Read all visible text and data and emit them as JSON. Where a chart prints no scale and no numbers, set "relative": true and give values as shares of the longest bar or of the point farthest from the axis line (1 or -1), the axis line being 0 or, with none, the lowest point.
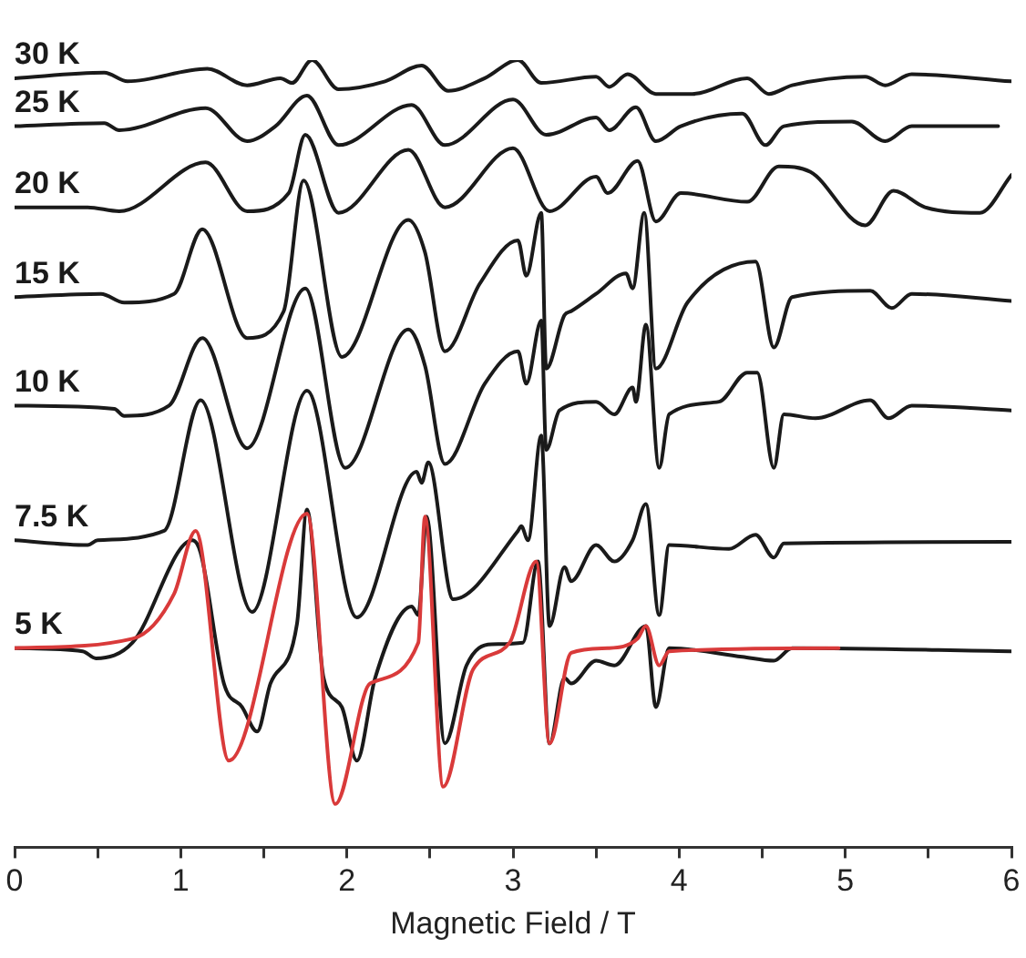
{
  "chart_data": {
    "type": "line",
    "relative": true,
    "xlabel": "Magnetic Field / T",
    "xlim": [
      0,
      6
    ],
    "xticks": [
      0,
      {
        "value": 0.5,
        "label": null
      },
      1,
      {
        "value": 1.5,
        "label": null
      },
      2,
      {
        "value": 2.5,
        "label": null
      },
      3,
      {
        "value": 3.5,
        "label": null
      },
      4,
      {
        "value": 4.5,
        "label": null
      },
      5,
      {
        "value": 5.5,
        "label": null
      },
      6
    ],
    "tick_labels": "x",
    "legend": false,
    "marker": "none",
    "line_style": "solid",
    "series": [
      {
        "name": "30 K",
        "color": "#1a1a1a",
        "x": [
          0,
          0.54,
          0.68,
          1.16,
          1.4,
          1.6,
          1.67,
          1.79,
          1.95,
          2.23,
          2.45,
          2.61,
          2.83,
          3.03,
          3.17,
          3.5,
          3.58,
          3.69,
          3.86,
          4.08,
          4.41,
          4.54,
          4.68,
          5.12,
          5.24,
          5.4,
          6.0
        ],
        "values": [
          0.977,
          0.984,
          0.973,
          0.989,
          0.968,
          0.977,
          0.971,
          1.0,
          0.963,
          0.973,
          0.993,
          0.961,
          0.977,
          1.0,
          0.971,
          0.979,
          0.966,
          0.982,
          0.957,
          0.957,
          0.977,
          0.957,
          0.968,
          0.979,
          0.968,
          0.982,
          0.973
        ]
      },
      {
        "name": "25 K",
        "color": "#1a1a1a",
        "x": [
          0,
          0.54,
          0.63,
          1.15,
          1.4,
          1.57,
          1.76,
          1.95,
          2.39,
          2.59,
          3.0,
          3.2,
          3.5,
          3.58,
          3.74,
          3.86,
          4.01,
          4.38,
          4.52,
          4.63,
          5.04,
          5.24,
          5.4,
          5.92
        ],
        "values": [
          0.916,
          0.92,
          0.911,
          0.939,
          0.897,
          0.916,
          0.955,
          0.892,
          0.943,
          0.892,
          0.95,
          0.905,
          0.927,
          0.911,
          0.94,
          0.897,
          0.916,
          0.932,
          0.892,
          0.916,
          0.922,
          0.897,
          0.916,
          0.916
        ]
      },
      {
        "name": "20 K",
        "color": "#1a1a1a",
        "x": [
          0,
          0.44,
          0.63,
          1.15,
          1.4,
          1.65,
          1.75,
          1.95,
          2.37,
          2.59,
          3.0,
          3.22,
          3.5,
          3.57,
          3.75,
          3.86,
          4.01,
          4.41,
          4.6,
          4.79,
          5.12,
          5.29,
          5.48,
          5.81,
          6.0
        ],
        "values": [
          0.813,
          0.813,
          0.808,
          0.87,
          0.808,
          0.831,
          0.905,
          0.806,
          0.886,
          0.813,
          0.888,
          0.808,
          0.852,
          0.831,
          0.872,
          0.795,
          0.831,
          0.82,
          0.865,
          0.858,
          0.79,
          0.834,
          0.813,
          0.806,
          0.854
        ]
      },
      {
        "name": "15 K",
        "color": "#1a1a1a",
        "x": [
          0,
          0.52,
          0.66,
          0.96,
          1.13,
          1.4,
          1.62,
          1.74,
          1.97,
          2.37,
          2.47,
          2.59,
          2.8,
          3.03,
          3.08,
          3.17,
          3.2,
          3.31,
          3.35,
          3.5,
          3.68,
          3.72,
          3.79,
          3.86,
          4.05,
          4.46,
          4.57,
          4.68,
          5.15,
          5.28,
          5.4,
          6.0
        ],
        "values": [
          0.699,
          0.703,
          0.692,
          0.703,
          0.785,
          0.647,
          0.681,
          0.847,
          0.623,
          0.797,
          0.756,
          0.63,
          0.716,
          0.771,
          0.726,
          0.806,
          0.608,
          0.676,
          0.681,
          0.703,
          0.729,
          0.71,
          0.806,
          0.608,
          0.692,
          0.744,
          0.635,
          0.699,
          0.707,
          0.685,
          0.703,
          0.694
        ]
      },
      {
        "name": "10 K",
        "color": "#1a1a1a",
        "x": [
          0,
          0.6,
          0.66,
          0.93,
          1.13,
          1.4,
          1.75,
          1.99,
          2.37,
          2.47,
          2.59,
          2.83,
          3.03,
          3.08,
          3.17,
          3.2,
          3.28,
          3.5,
          3.61,
          3.72,
          3.74,
          3.8,
          3.88,
          3.94,
          4.24,
          4.41,
          4.47,
          4.57,
          4.63,
          4.82,
          5.15,
          5.26,
          5.4,
          6.0
        ],
        "values": [
          0.561,
          0.557,
          0.548,
          0.561,
          0.647,
          0.507,
          0.71,
          0.482,
          0.658,
          0.612,
          0.487,
          0.589,
          0.63,
          0.589,
          0.669,
          0.505,
          0.555,
          0.566,
          0.55,
          0.584,
          0.566,
          0.664,
          0.482,
          0.55,
          0.566,
          0.603,
          0.603,
          0.482,
          0.55,
          0.545,
          0.568,
          0.545,
          0.561,
          0.555
        ]
      },
      {
        "name": "7.5 K",
        "color": "#1a1a1a",
        "x": [
          0,
          0.44,
          0.5,
          0.9,
          1.12,
          1.43,
          1.76,
          2.06,
          2.42,
          2.45,
          2.49,
          2.64,
          3.03,
          3.05,
          3.09,
          3.17,
          3.22,
          3.31,
          3.35,
          3.5,
          3.61,
          3.72,
          3.8,
          3.88,
          3.94,
          4.3,
          4.46,
          4.57,
          4.63,
          6.0
        ],
        "values": [
          0.39,
          0.384,
          0.39,
          0.402,
          0.568,
          0.299,
          0.58,
          0.292,
          0.477,
          0.463,
          0.489,
          0.315,
          0.402,
          0.408,
          0.39,
          0.523,
          0.281,
          0.356,
          0.338,
          0.384,
          0.363,
          0.39,
          0.436,
          0.295,
          0.384,
          0.379,
          0.397,
          0.368,
          0.386,
          0.388
        ]
      },
      {
        "name": "5 K",
        "color": "#1a1a1a",
        "x": [
          0,
          0.41,
          0.49,
          0.71,
          1.07,
          1.12,
          1.26,
          1.37,
          1.46,
          1.54,
          1.7,
          1.76,
          1.86,
          1.97,
          2.06,
          2.17,
          2.39,
          2.43,
          2.48,
          2.59,
          2.72,
          2.87,
          3.06,
          3.15,
          3.22,
          3.31,
          3.35,
          3.5,
          3.61,
          3.8,
          3.86,
          3.94,
          4.38,
          4.57,
          4.68,
          6.0
        ],
        "values": [
          0.253,
          0.249,
          0.24,
          0.26,
          0.39,
          0.374,
          0.208,
          0.178,
          0.147,
          0.208,
          0.284,
          0.429,
          0.215,
          0.178,
          0.11,
          0.215,
          0.306,
          0.295,
          0.42,
          0.132,
          0.231,
          0.258,
          0.26,
          0.363,
          0.132,
          0.215,
          0.208,
          0.237,
          0.231,
          0.281,
          0.178,
          0.253,
          0.242,
          0.237,
          0.253,
          0.249
        ]
      },
      {
        "color": "#d93a3a",
        "x": [
          0,
          0.71,
          0.96,
          1.09,
          1.29,
          1.76,
          1.93,
          2.14,
          2.43,
          2.47,
          2.58,
          2.76,
          2.98,
          3.14,
          3.22,
          3.35,
          3.57,
          3.75,
          3.8,
          3.88,
          3.94,
          4.96
        ],
        "values": [
          0.253,
          0.265,
          0.322,
          0.402,
          0.11,
          0.424,
          0.055,
          0.208,
          0.26,
          0.42,
          0.077,
          0.226,
          0.26,
          0.363,
          0.132,
          0.247,
          0.253,
          0.265,
          0.281,
          0.231,
          0.249,
          0.253
        ]
      }
    ]
  }
}
